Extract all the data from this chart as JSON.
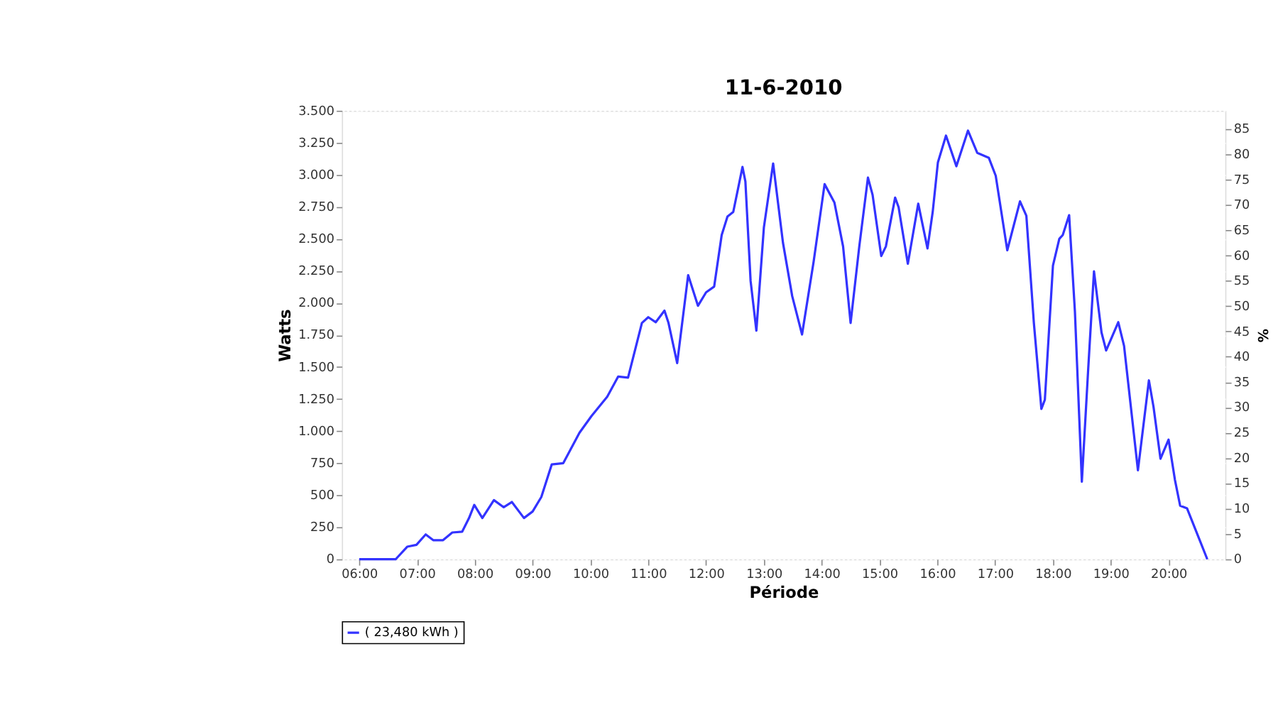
{
  "chart_data": {
    "type": "line",
    "title": "11-6-2010",
    "xlabel": "Période",
    "ylabel": "Watts",
    "y2label": "%",
    "x": [
      6.0,
      6.63,
      6.83,
      6.99,
      7.15,
      7.28,
      7.45,
      7.61,
      7.78,
      7.9,
      7.99,
      8.13,
      8.33,
      8.5,
      8.64,
      8.85,
      9.0,
      9.15,
      9.33,
      9.53,
      9.81,
      10.02,
      10.29,
      10.48,
      10.65,
      10.89,
      11.0,
      11.13,
      11.28,
      11.35,
      11.5,
      11.69,
      11.86,
      12.0,
      12.14,
      12.27,
      12.37,
      12.47,
      12.63,
      12.68,
      12.77,
      12.87,
      13.0,
      13.16,
      13.33,
      13.49,
      13.66,
      13.86,
      14.05,
      14.22,
      14.37,
      14.5,
      14.65,
      14.8,
      14.88,
      15.03,
      15.11,
      15.27,
      15.33,
      15.49,
      15.67,
      15.83,
      15.92,
      16.01,
      16.15,
      16.33,
      16.53,
      16.69,
      16.89,
      17.01,
      17.21,
      17.43,
      17.54,
      17.67,
      17.8,
      17.86,
      18.0,
      18.11,
      18.17,
      18.28,
      18.38,
      18.5,
      18.61,
      18.71,
      18.84,
      18.92,
      19.13,
      19.23,
      19.47,
      19.66,
      19.74,
      19.86,
      20.0,
      20.11,
      20.2,
      20.32,
      20.67
    ],
    "series": [
      {
        "name": "( 23,480 kWh )",
        "color": "#3333ff",
        "values": [
          0,
          0,
          98,
          113,
          194,
          149,
          149,
          209,
          215,
          322,
          424,
          322,
          462,
          406,
          447,
          322,
          373,
          486,
          740,
          750,
          987,
          1119,
          1268,
          1426,
          1417,
          1844,
          1889,
          1850,
          1940,
          1844,
          1531,
          2217,
          1978,
          2083,
          2128,
          2530,
          2674,
          2710,
          3061,
          2948,
          2172,
          1784,
          2590,
          3088,
          2470,
          2053,
          1754,
          2321,
          2927,
          2784,
          2441,
          1844,
          2441,
          2978,
          2844,
          2366,
          2441,
          2822,
          2748,
          2306,
          2775,
          2426,
          2710,
          3097,
          3306,
          3067,
          3345,
          3172,
          3133,
          2993,
          2411,
          2793,
          2680,
          1844,
          1173,
          1245,
          2291,
          2500,
          2530,
          2685,
          1933,
          606,
          1486,
          2247,
          1770,
          1629,
          1850,
          1665,
          695,
          1396,
          1188,
          785,
          934,
          620,
          418,
          397,
          0
        ]
      }
    ],
    "xlim": [
      5.7,
      20.98
    ],
    "xticks": [
      {
        "value": 6,
        "label": "06:00"
      },
      {
        "value": 7,
        "label": "07:00"
      },
      {
        "value": 8,
        "label": "08:00"
      },
      {
        "value": 9,
        "label": "09:00"
      },
      {
        "value": 10,
        "label": "10:00"
      },
      {
        "value": 11,
        "label": "11:00"
      },
      {
        "value": 12,
        "label": "12:00"
      },
      {
        "value": 13,
        "label": "13:00"
      },
      {
        "value": 14,
        "label": "14:00"
      },
      {
        "value": 15,
        "label": "15:00"
      },
      {
        "value": 16,
        "label": "16:00"
      },
      {
        "value": 17,
        "label": "17:00"
      },
      {
        "value": 18,
        "label": "18:00"
      },
      {
        "value": 19,
        "label": "19:00"
      },
      {
        "value": 20,
        "label": "20:00"
      }
    ],
    "ylim": [
      0,
      3500
    ],
    "yticks": [
      0,
      250,
      500,
      750,
      {
        "value": 1000,
        "label": "1.000"
      },
      {
        "value": 1250,
        "label": "1.250"
      },
      {
        "value": 1500,
        "label": "1.500"
      },
      {
        "value": 1750,
        "label": "1.750"
      },
      {
        "value": 2000,
        "label": "2.000"
      },
      {
        "value": 2250,
        "label": "2.250"
      },
      {
        "value": 2500,
        "label": "2.500"
      },
      {
        "value": 2750,
        "label": "2.750"
      },
      {
        "value": 3000,
        "label": "3.000"
      },
      {
        "value": 3250,
        "label": "3.250"
      },
      {
        "value": 3500,
        "label": "3.500"
      }
    ],
    "y2lim": [
      0,
      88.6
    ],
    "y2ticks": [
      0,
      5,
      10,
      15,
      20,
      25,
      30,
      35,
      40,
      45,
      50,
      55,
      60,
      65,
      70,
      75,
      80,
      85
    ],
    "grid": true,
    "legend": "bottom",
    "line_style": "solid"
  }
}
